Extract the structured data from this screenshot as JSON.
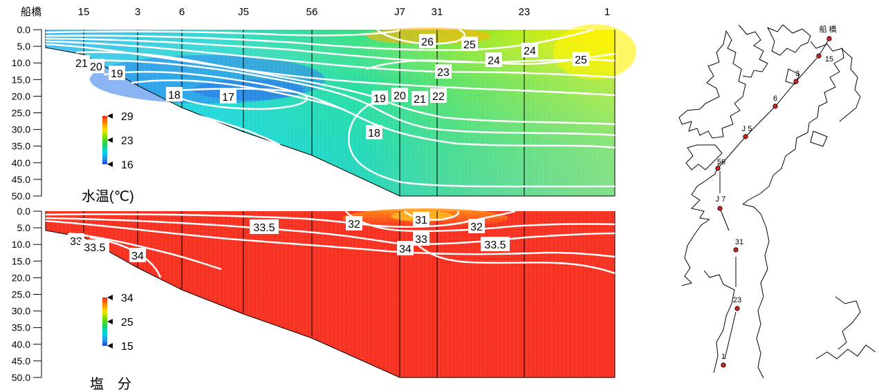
{
  "chart_data": [
    {
      "type": "heatmap",
      "title": "水温(℃)",
      "xlabel": "",
      "ylabel": "",
      "stations": [
        "船橋",
        "15",
        "3",
        "6",
        "J5",
        "56",
        "J7",
        "31",
        "23",
        "1"
      ],
      "y_tick_labels": [
        "0.0",
        "5.0",
        "10.0",
        "15.0",
        "20.0",
        "25.0",
        "30.0",
        "35.0",
        "40.0",
        "45.0",
        "50.0"
      ],
      "ylim": [
        0,
        50
      ],
      "y_reversed": true,
      "colorbar": {
        "ticks": [
          "29",
          "23",
          "16"
        ],
        "min": 16,
        "max": 29
      },
      "contour_labels": [
        "26",
        "25",
        "24",
        "24",
        "25",
        "23",
        "21",
        "20",
        "19",
        "18",
        "17",
        "19",
        "20",
        "21",
        "22",
        "18"
      ],
      "contour_levels": [
        17,
        18,
        19,
        20,
        21,
        22,
        23,
        24,
        25,
        26
      ]
    },
    {
      "type": "heatmap",
      "title": "塩　分",
      "xlabel": "",
      "ylabel": "",
      "stations": [
        "船橋",
        "15",
        "3",
        "6",
        "J5",
        "56",
        "J7",
        "31",
        "23",
        "1"
      ],
      "y_tick_labels": [
        "0.0",
        "5.0",
        "10.0",
        "15.0",
        "20.0",
        "25.0",
        "30.0",
        "35.0",
        "40.0",
        "45.0",
        "50.0"
      ],
      "ylim": [
        0,
        50
      ],
      "y_reversed": true,
      "colorbar": {
        "ticks": [
          "34",
          "25",
          "15"
        ],
        "min": 15,
        "max": 34
      },
      "contour_labels": [
        "33.5",
        "32",
        "31",
        "32",
        "33",
        "34",
        "33.5",
        "33",
        "33.5",
        "34"
      ],
      "contour_levels": [
        31,
        32,
        33,
        33.5,
        34
      ]
    }
  ],
  "map": {
    "station_labels": [
      "船 橋",
      "15",
      "3",
      "6",
      "J 5",
      "56",
      "J 7",
      "31",
      "23",
      "1"
    ],
    "marker_color": "#d42020"
  },
  "colors": {
    "contour": "#ffffff",
    "salinity_base": "#ee2a1a"
  }
}
